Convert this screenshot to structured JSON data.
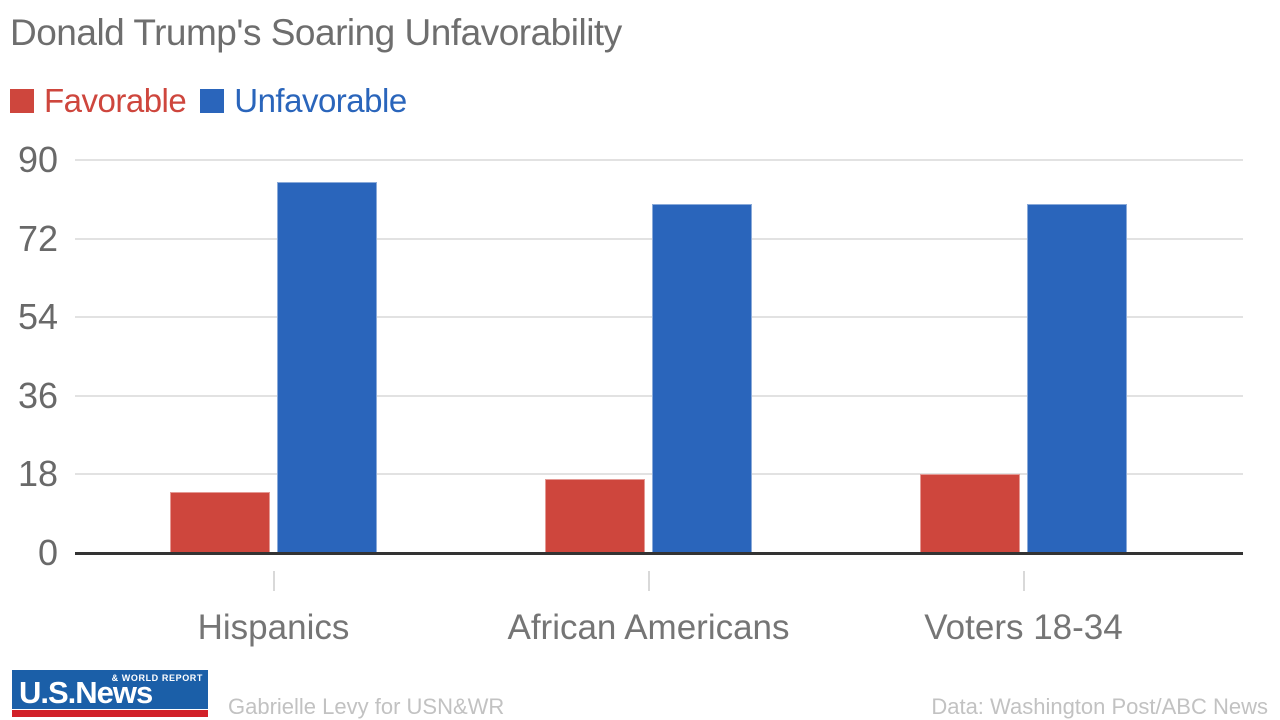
{
  "chart_data": {
    "type": "bar",
    "title": "Donald Trump's Soaring Unfavorability",
    "categories": [
      "Hispanics",
      "African Americans",
      "Voters 18-34"
    ],
    "series": [
      {
        "name": "Favorable",
        "color": "#ce463d",
        "values": [
          14,
          17,
          18
        ]
      },
      {
        "name": "Unfavorable",
        "color": "#2a65bb",
        "values": [
          85,
          80,
          80
        ]
      }
    ],
    "xlabel": "",
    "ylabel": "",
    "ylim": [
      0,
      90
    ],
    "y_ticks": [
      0,
      18,
      36,
      54,
      72,
      90
    ],
    "grid": "horizontal",
    "legend_position": "top-left"
  },
  "colors": {
    "title_text": "#6e6e6e",
    "axis_label_text": "#696969",
    "category_text": "#757575",
    "gridline": "#e2e2e2",
    "baseline": "#333333",
    "tick": "#d9d9d9",
    "credit_text": "#c2c2c2",
    "logo_blue": "#1b5fa8",
    "logo_red": "#d12129"
  },
  "footer": {
    "logo": {
      "main": "U.S.News",
      "sub": "& WORLD REPORT"
    },
    "credit_left": "Gabrielle Levy for USN&WR",
    "credit_right": "Data: Washington Post/ABC News"
  }
}
